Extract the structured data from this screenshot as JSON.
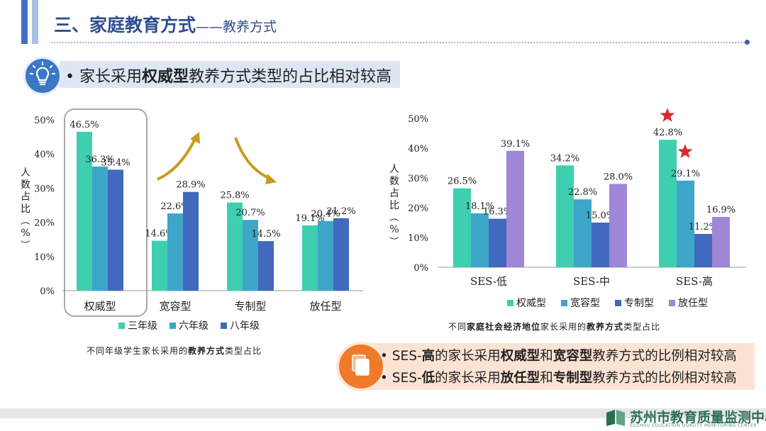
{
  "header": {
    "title": "三、家庭教育方式",
    "subtitle": "——教养方式"
  },
  "banner": {
    "prefix": "• 家长采用",
    "bold": "权威型",
    "suffix": "教养方式类型的占比相对较高"
  },
  "chart_data": [
    {
      "type": "bar",
      "title": "",
      "ylabel": "人数占比（%）",
      "ylim": [
        0,
        50
      ],
      "yticks": [
        "0%",
        "10%",
        "20%",
        "30%",
        "40%",
        "50%"
      ],
      "categories": [
        "权威型",
        "宽容型",
        "专制型",
        "放任型"
      ],
      "series": [
        {
          "name": "三年级",
          "color": "#3ecfb0",
          "values": [
            46.5,
            14.6,
            25.8,
            19.1
          ]
        },
        {
          "name": "六年级",
          "color": "#3da6c9",
          "values": [
            36.3,
            22.6,
            20.7,
            20.4
          ]
        },
        {
          "name": "八年级",
          "color": "#4169bd",
          "values": [
            35.4,
            28.9,
            14.5,
            21.2
          ]
        }
      ],
      "labels": [
        [
          "46.5%",
          "14.6%",
          "25.8%",
          "19.1%"
        ],
        [
          "36.3%",
          "22.6%",
          "20.7%",
          "20.4%"
        ],
        [
          "35.4%",
          "28.9%",
          "14.5%",
          "21.2%"
        ]
      ],
      "legend_position": "bottom",
      "caption": {
        "pre": "不同年级学生家长采用的",
        "bold": "教养方式",
        "post": "类型占比"
      }
    },
    {
      "type": "bar",
      "title": "",
      "ylabel": "人数占比（%）",
      "ylim": [
        0,
        50
      ],
      "yticks": [
        "0%",
        "10%",
        "20%",
        "30%",
        "40%",
        "50%"
      ],
      "categories": [
        "SES-低",
        "SES-中",
        "SES-高"
      ],
      "series": [
        {
          "name": "权威型",
          "color": "#3ecfb0",
          "values": [
            26.5,
            34.2,
            42.8
          ]
        },
        {
          "name": "宽容型",
          "color": "#3da6c9",
          "values": [
            18.1,
            22.8,
            29.1
          ]
        },
        {
          "name": "专制型",
          "color": "#4169bd",
          "values": [
            16.3,
            15.0,
            11.2
          ]
        },
        {
          "name": "放任型",
          "color": "#9f86d6",
          "values": [
            39.1,
            28.0,
            16.9
          ]
        }
      ],
      "labels": [
        [
          "26.5%",
          "34.2%",
          "42.8%"
        ],
        [
          "18.1%",
          "22.8%",
          "29.1%"
        ],
        [
          "16.3%",
          "15.0%",
          "11.2%"
        ],
        [
          "39.1%",
          "28.0%",
          "16.9%"
        ]
      ],
      "legend_position": "bottom",
      "caption": {
        "pre": "不同",
        "bold1": "家庭社会经济地位",
        "mid": "家长采用的",
        "bold2": "教养方式",
        "post": "类型占比"
      }
    }
  ],
  "notes": [
    {
      "p1": "• SES-",
      "b1": "高",
      "p2": "的家长采用",
      "b2": "权威型",
      "p3": "和",
      "b3": "宽容型",
      "p4": "教养方式的比例相对较高"
    },
    {
      "p1": "• SES-",
      "b1": "低",
      "p2": "的家长采用",
      "b2": "放任型",
      "p3": "和",
      "b3": "专制型",
      "p4": "教养方式的比例相对较高"
    }
  ],
  "footer": {
    "org": "苏州市教育质量监测中心",
    "org_en": "SUZHOU EDUCATION QUALITY MONITORING CENTER"
  },
  "colors": {
    "accent": "#3f6fc5",
    "orange": "#ef7a2a",
    "star": "#d62b2b",
    "arrow": "#c99a1e"
  }
}
